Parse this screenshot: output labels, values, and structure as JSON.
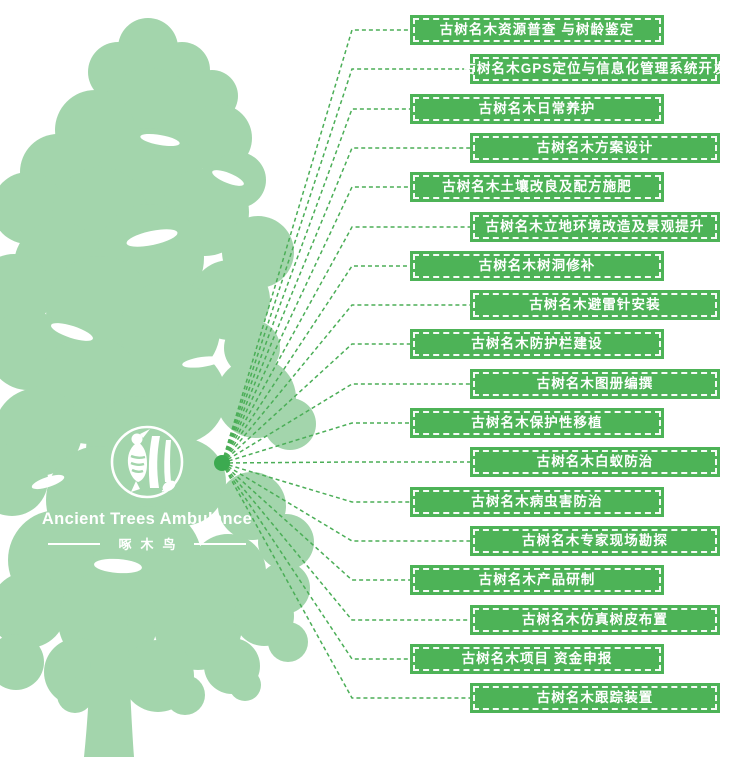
{
  "logo": {
    "brand_en": "Ancient Trees Ambulance",
    "brand_zh": "啄木鸟"
  },
  "colors": {
    "tree_green": "#a3d5ac",
    "box_green": "#4db357",
    "line_green": "#4bae57",
    "dot_green": "#3caa50",
    "label_white": "#ffffff"
  },
  "services": [
    {
      "label": "古树名木资源普查 与树龄鉴定",
      "indent": false
    },
    {
      "label": "古树名木GPS定位与信息化管理系统开发",
      "indent": true
    },
    {
      "label": "古树名木日常养护",
      "indent": false
    },
    {
      "label": "古树名木方案设计",
      "indent": true
    },
    {
      "label": "古树名木土壤改良及配方施肥",
      "indent": false
    },
    {
      "label": "古树名木立地环境改造及景观提升",
      "indent": true
    },
    {
      "label": "古树名木树洞修补",
      "indent": false
    },
    {
      "label": "古树名木避雷针安装",
      "indent": true
    },
    {
      "label": "古树名木防护栏建设",
      "indent": false
    },
    {
      "label": "古树名木图册编撰",
      "indent": true
    },
    {
      "label": "古树名木保护性移植",
      "indent": false
    },
    {
      "label": "古树名木白蚁防治",
      "indent": true
    },
    {
      "label": "古树名木病虫害防治",
      "indent": false
    },
    {
      "label": "古树名木专家现场勘探",
      "indent": true
    },
    {
      "label": "古树名木产品研制",
      "indent": false
    },
    {
      "label": "古树名木仿真树皮布置",
      "indent": true
    },
    {
      "label": "古树名木项目 资金申报",
      "indent": false
    },
    {
      "label": "古树名木跟踪装置",
      "indent": true
    }
  ]
}
